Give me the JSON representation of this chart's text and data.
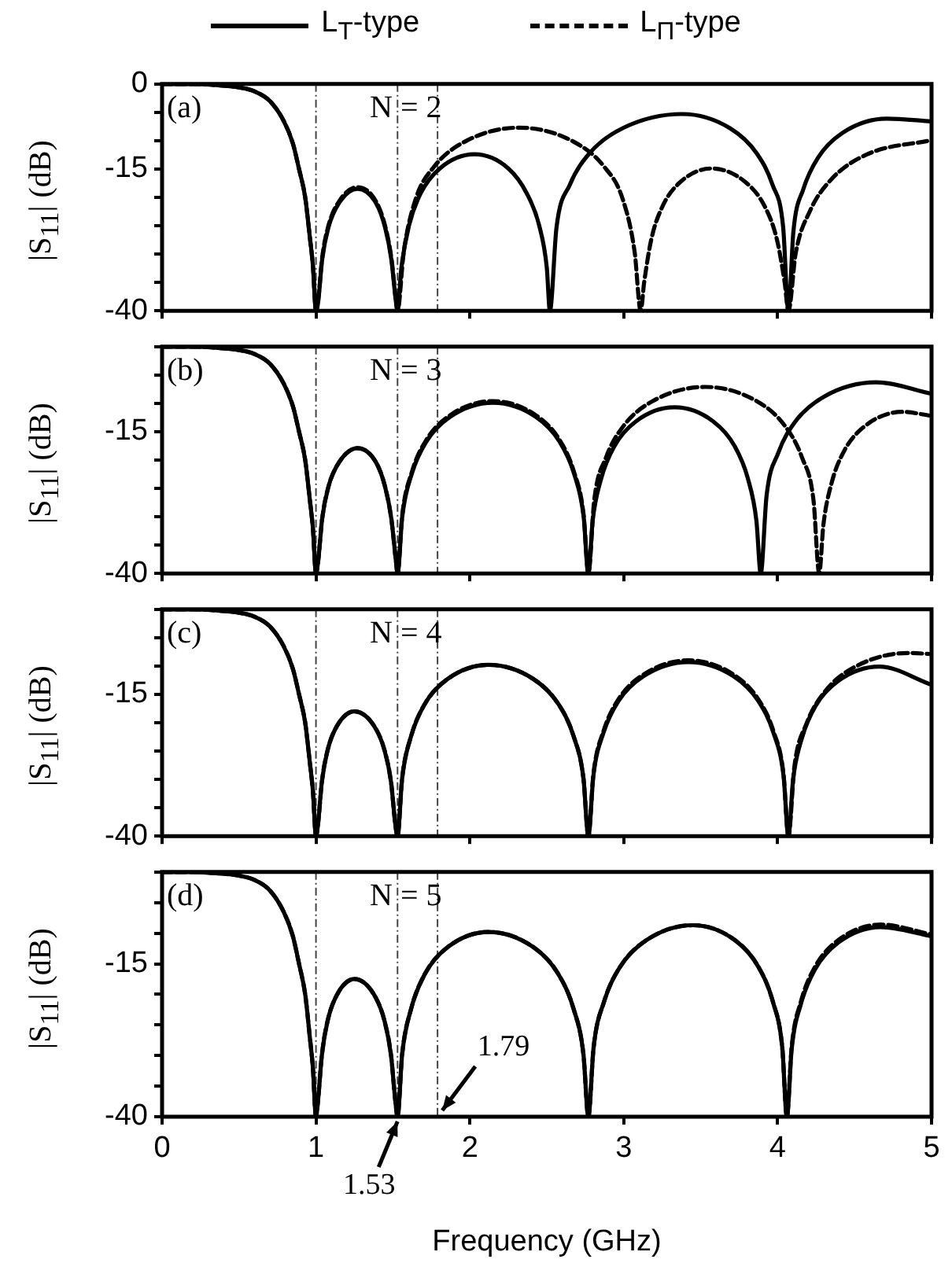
{
  "chart_data": [
    {
      "type": "line",
      "ylabel": "|S$_{11}$| (dB)",
      "legend": "top",
      "marker": "none",
      "tick_labels": "y",
      "annotations": [
        "(a)",
        "N = 2"
      ],
      "xlim": [
        0,
        5
      ],
      "xticks": [
        0,
        1,
        2,
        3,
        4,
        5
      ],
      "ylim": [
        -40,
        0
      ],
      "yticks": [
        0,
        {
          "value": -5,
          "label": null
        },
        {
          "value": -10,
          "label": null
        },
        -15,
        {
          "value": -20,
          "label": null
        },
        {
          "value": -25,
          "label": null
        },
        {
          "value": -30,
          "label": null
        },
        {
          "value": -35,
          "label": null
        },
        -40
      ],
      "ref_lines": [
        {
          "axis": "x",
          "value": 1.0,
          "color": "#444444",
          "line_style": "dashed"
        },
        {
          "axis": "x",
          "value": 1.53,
          "color": "#444444",
          "line_style": "dashed"
        },
        {
          "axis": "x",
          "value": 1.79,
          "color": "#444444",
          "line_style": "dashed"
        }
      ],
      "series": [
        {
          "name": "L$_{T}$-type",
          "color": "#000000",
          "line_style": "solid",
          "x": [
            0,
            0.2,
            0.35,
            0.5,
            0.6,
            0.7,
            0.79,
            0.85,
            0.89,
            0.93,
            0.96,
            0.98,
            1.0,
            1.014,
            1.04,
            1.08,
            1.15,
            1.27,
            1.39,
            1.45,
            1.49,
            1.52,
            1.53,
            1.555,
            1.605,
            1.68,
            1.805,
            2.03,
            2.25,
            2.37,
            2.45,
            2.5,
            2.52,
            2.563,
            2.649,
            2.778,
            2.993,
            3.38,
            3.69,
            3.863,
            3.967,
            4.036,
            4.07,
            4.102,
            4.166,
            4.262,
            4.422,
            4.71,
            5.0
          ],
          "values": [
            0,
            0,
            -0.2,
            -0.6,
            -1.3,
            -3,
            -6.5,
            -10.5,
            -15,
            -20,
            -27,
            -32,
            -40,
            -38.5,
            -31,
            -25.4,
            -21,
            -18.5,
            -21,
            -25.4,
            -31,
            -38.5,
            -40,
            -32.4,
            -24.9,
            -19.3,
            -14.9,
            -12.4,
            -14.9,
            -19.3,
            -24.9,
            -32.4,
            -40,
            -25.3,
            -17.8,
            -12.2,
            -7.8,
            -5.3,
            -7.8,
            -12.2,
            -17.8,
            -25.3,
            -40,
            -26.1,
            -18.6,
            -13,
            -8.6,
            -6.1,
            -6.6
          ]
        },
        {
          "name": "L$_{Π}$-type",
          "color": "#000000",
          "line_style": "dashed",
          "x": [
            0,
            0.2,
            0.35,
            0.5,
            0.6,
            0.7,
            0.79,
            0.85,
            0.89,
            0.93,
            0.96,
            0.98,
            1.0,
            1.014,
            1.04,
            1.08,
            1.15,
            1.27,
            1.39,
            1.45,
            1.49,
            1.52,
            1.53,
            1.57,
            1.649,
            1.767,
            1.965,
            2.32,
            2.676,
            2.873,
            2.992,
            3.071,
            3.11,
            3.133,
            3.179,
            3.248,
            3.363,
            3.57,
            3.795,
            3.92,
            3.995,
            4.045,
            4.07,
            4.117,
            4.21,
            4.349,
            4.582,
            5.0
          ],
          "values": [
            0,
            0,
            -0.2,
            -0.6,
            -1.3,
            -3,
            -6.5,
            -10.5,
            -15,
            -20,
            -27,
            -32,
            -40,
            -38.2,
            -30.7,
            -25.1,
            -20.7,
            -18.2,
            -20.7,
            -25.1,
            -30.7,
            -38.2,
            -40,
            -29.7,
            -20.2,
            -14.6,
            -10.2,
            -7.7,
            -10.2,
            -14.6,
            -20.2,
            -29.7,
            -40,
            -34.9,
            -27.4,
            -21.8,
            -17.4,
            -14.9,
            -17.4,
            -21.8,
            -27.4,
            -34.9,
            -40,
            -29.9,
            -22.4,
            -16.8,
            -12.4,
            -9.9
          ]
        }
      ]
    },
    {
      "type": "line",
      "ylabel": "|S$_{11}$| (dB)",
      "marker": "none",
      "tick_labels": "y",
      "annotations": [
        "(b)",
        "N = 3"
      ],
      "xlim": [
        0,
        5
      ],
      "xticks": [
        0,
        1,
        2,
        3,
        4,
        5
      ],
      "ylim": [
        -40,
        0
      ],
      "yticks": [
        {
          "value": 0,
          "label": null
        },
        {
          "value": -5,
          "label": null
        },
        {
          "value": -10,
          "label": null
        },
        -15,
        {
          "value": -20,
          "label": null
        },
        {
          "value": -25,
          "label": null
        },
        {
          "value": -30,
          "label": null
        },
        {
          "value": -35,
          "label": null
        },
        -40
      ],
      "ref_lines": [
        {
          "axis": "x",
          "value": 1.0,
          "color": "#444444",
          "line_style": "dashed"
        },
        {
          "axis": "x",
          "value": 1.53,
          "color": "#444444",
          "line_style": "dashed"
        },
        {
          "axis": "x",
          "value": 1.79,
          "color": "#444444",
          "line_style": "dashed"
        }
      ],
      "series": [
        {
          "color": "#000000",
          "line_style": "solid",
          "x": [
            0,
            0.2,
            0.35,
            0.5,
            0.6,
            0.7,
            0.79,
            0.85,
            0.89,
            0.93,
            0.96,
            0.98,
            1.0,
            1.014,
            1.04,
            1.08,
            1.15,
            1.27,
            1.39,
            1.45,
            1.49,
            1.52,
            1.53,
            1.561,
            1.623,
            1.716,
            1.871,
            2.15,
            2.429,
            2.584,
            2.677,
            2.739,
            2.77,
            2.798,
            2.854,
            2.938,
            3.078,
            3.33,
            3.582,
            3.722,
            3.806,
            3.862,
            3.89,
            3.928,
            4.003,
            4.115,
            4.303,
            4.64,
            5.0
          ],
          "values": [
            0,
            0,
            -0.2,
            -0.6,
            -1.3,
            -3,
            -6.5,
            -10.5,
            -15,
            -20,
            -27,
            -32,
            -40,
            -37.9,
            -30.4,
            -24.8,
            -20.4,
            -17.9,
            -20.4,
            -24.8,
            -30.4,
            -37.9,
            -40,
            -29.9,
            -22.4,
            -16.8,
            -12.4,
            -9.9,
            -12.4,
            -16.8,
            -22.4,
            -29.9,
            -40,
            -30.7,
            -23.2,
            -17.6,
            -13.2,
            -10.7,
            -13.2,
            -17.6,
            -23.2,
            -30.7,
            -40,
            -26.3,
            -18.8,
            -13.2,
            -8.8,
            -6.3,
            -8.3
          ]
        },
        {
          "color": "#000000",
          "line_style": "dashed",
          "x": [
            0,
            0.2,
            0.35,
            0.5,
            0.6,
            0.7,
            0.79,
            0.85,
            0.89,
            0.93,
            0.96,
            0.98,
            1.0,
            1.014,
            1.04,
            1.08,
            1.15,
            1.27,
            1.39,
            1.45,
            1.49,
            1.52,
            1.53,
            1.561,
            1.623,
            1.716,
            1.871,
            2.15,
            2.429,
            2.584,
            2.677,
            2.739,
            2.77,
            2.808,
            2.884,
            2.998,
            3.188,
            3.53,
            3.863,
            4.048,
            4.159,
            4.233,
            4.27,
            4.297,
            4.351,
            4.432,
            4.567,
            4.81,
            5.0
          ],
          "values": [
            0,
            0,
            -0.2,
            -0.6,
            -1.3,
            -3,
            -6.5,
            -10.5,
            -15,
            -20,
            -27,
            -32,
            -40,
            -37.9,
            -30.4,
            -24.8,
            -20.4,
            -17.9,
            -20.4,
            -24.8,
            -30.4,
            -37.9,
            -40,
            -29.6,
            -22.1,
            -16.5,
            -12.1,
            -9.6,
            -12.1,
            -16.5,
            -22.1,
            -29.6,
            -40,
            -27.1,
            -19.6,
            -14,
            -9.6,
            -7.1,
            -9.6,
            -14,
            -19.6,
            -27.1,
            -40,
            -31.5,
            -24,
            -18.4,
            -14,
            -11.5,
            -12.2
          ]
        }
      ]
    },
    {
      "type": "line",
      "ylabel": "|S$_{11}$| (dB)",
      "marker": "none",
      "tick_labels": "y",
      "annotations": [
        "(c)",
        "N = 4"
      ],
      "xlim": [
        0,
        5
      ],
      "xticks": [
        0,
        1,
        2,
        3,
        4,
        5
      ],
      "ylim": [
        -40,
        0
      ],
      "yticks": [
        {
          "value": 0,
          "label": null
        },
        {
          "value": -5,
          "label": null
        },
        {
          "value": -10,
          "label": null
        },
        -15,
        {
          "value": -20,
          "label": null
        },
        {
          "value": -25,
          "label": null
        },
        {
          "value": -30,
          "label": null
        },
        {
          "value": -35,
          "label": null
        },
        -40
      ],
      "ref_lines": [
        {
          "axis": "x",
          "value": 1.0,
          "color": "#444444",
          "line_style": "dashed"
        },
        {
          "axis": "x",
          "value": 1.53,
          "color": "#444444",
          "line_style": "dashed"
        },
        {
          "axis": "x",
          "value": 1.79,
          "color": "#444444",
          "line_style": "dashed"
        }
      ],
      "series": [
        {
          "color": "#000000",
          "line_style": "solid",
          "x": [
            0,
            0.2,
            0.35,
            0.5,
            0.6,
            0.7,
            0.79,
            0.85,
            0.89,
            0.93,
            0.96,
            0.98,
            1.0,
            1.013,
            1.038,
            1.075,
            1.138,
            1.25,
            1.376,
            1.446,
            1.488,
            1.516,
            1.53,
            1.56,
            1.619,
            1.707,
            1.855,
            2.12,
            2.413,
            2.575,
            2.673,
            2.738,
            2.77,
            2.803,
            2.868,
            2.965,
            3.128,
            3.42,
            3.713,
            3.875,
            3.973,
            4.038,
            4.07,
            4.1,
            4.159,
            4.247,
            4.395,
            4.66,
            5.0
          ],
          "values": [
            0,
            0,
            -0.2,
            -0.6,
            -1.3,
            -3,
            -6.5,
            -10.5,
            -15,
            -20,
            -27,
            -32,
            -40,
            -38,
            -30.5,
            -24.9,
            -20.5,
            -18,
            -20.5,
            -24.9,
            -30.5,
            -38,
            -40,
            -29.8,
            -22.3,
            -16.7,
            -12.3,
            -9.8,
            -12.3,
            -16.7,
            -22.3,
            -29.8,
            -40,
            -29.3,
            -21.8,
            -16.2,
            -11.8,
            -9.3,
            -11.8,
            -16.2,
            -21.8,
            -29.3,
            -40,
            -30.1,
            -22.6,
            -17,
            -12.6,
            -10.1,
            -13.3
          ]
        },
        {
          "color": "#000000",
          "line_style": "dashed",
          "x": [
            0,
            0.2,
            0.35,
            0.5,
            0.6,
            0.7,
            0.79,
            0.85,
            0.89,
            0.93,
            0.96,
            0.98,
            1.0,
            1.013,
            1.038,
            1.075,
            1.138,
            1.25,
            1.376,
            1.446,
            1.488,
            1.516,
            1.53,
            1.56,
            1.619,
            1.707,
            1.855,
            2.12,
            2.413,
            2.575,
            2.673,
            2.738,
            2.77,
            2.803,
            2.868,
            2.965,
            3.128,
            3.42,
            3.713,
            3.875,
            3.973,
            4.038,
            4.07,
            4.109,
            4.187,
            4.304,
            4.499,
            4.85,
            5.0
          ],
          "values": [
            0,
            0,
            -0.2,
            -0.6,
            -1.3,
            -3,
            -6.5,
            -10.5,
            -15,
            -20,
            -27,
            -32,
            -40,
            -38,
            -30.5,
            -24.9,
            -20.5,
            -18,
            -20.5,
            -24.9,
            -30.5,
            -38,
            -40,
            -29.8,
            -22.3,
            -16.7,
            -12.3,
            -9.8,
            -12.3,
            -16.7,
            -22.3,
            -29.8,
            -40,
            -29,
            -21.5,
            -15.9,
            -11.5,
            -9,
            -11.5,
            -15.9,
            -21.5,
            -29,
            -40,
            -27.7,
            -20.2,
            -14.6,
            -10.2,
            -7.7,
            -7.9
          ]
        }
      ]
    },
    {
      "type": "line",
      "ylabel": "|S$_{11}$| (dB)",
      "xlabel": "Frequency (GHz)",
      "marker": "none",
      "annotations": [
        "(d)",
        "N = 5",
        {
          "text": "1.53",
          "x": 1.53,
          "y": -40
        },
        {
          "text": "1.79",
          "x": 1.79,
          "y": -40
        }
      ],
      "xlim": [
        0,
        5
      ],
      "xticks": [
        0,
        1,
        2,
        3,
        4,
        5
      ],
      "ylim": [
        -40,
        0
      ],
      "yticks": [
        {
          "value": 0,
          "label": null
        },
        {
          "value": -5,
          "label": null
        },
        {
          "value": -10,
          "label": null
        },
        -15,
        {
          "value": -20,
          "label": null
        },
        {
          "value": -25,
          "label": null
        },
        {
          "value": -30,
          "label": null
        },
        {
          "value": -35,
          "label": null
        },
        -40
      ],
      "ref_lines": [
        {
          "axis": "x",
          "value": 1.0,
          "color": "#444444",
          "line_style": "dashed"
        },
        {
          "axis": "x",
          "value": 1.53,
          "color": "#444444",
          "line_style": "dashed"
        },
        {
          "axis": "x",
          "value": 1.79,
          "color": "#444444",
          "line_style": "dashed"
        }
      ],
      "series": [
        {
          "color": "#000000",
          "line_style": "solid",
          "x": [
            0,
            0.2,
            0.35,
            0.5,
            0.6,
            0.7,
            0.79,
            0.85,
            0.89,
            0.93,
            0.96,
            0.98,
            1.0,
            1.013,
            1.038,
            1.075,
            1.138,
            1.25,
            1.376,
            1.446,
            1.488,
            1.516,
            1.53,
            1.56,
            1.619,
            1.707,
            1.855,
            2.12,
            2.413,
            2.575,
            2.673,
            2.738,
            2.77,
            2.804,
            2.872,
            2.974,
            3.144,
            3.45,
            3.725,
            3.877,
            3.969,
            4.03,
            4.06,
            4.091,
            4.152,
            4.243,
            4.396,
            4.67,
            5.0
          ],
          "values": [
            0,
            0,
            -0.2,
            -0.6,
            -1.3,
            -3,
            -6.5,
            -10.5,
            -15,
            -20,
            -27,
            -32,
            -40,
            -37.5,
            -30,
            -24.4,
            -20,
            -17.5,
            -20,
            -24.4,
            -30,
            -37.5,
            -40,
            -29.8,
            -22.3,
            -16.7,
            -12.3,
            -9.8,
            -12.3,
            -16.7,
            -22.3,
            -29.8,
            -40,
            -28.7,
            -21.2,
            -15.6,
            -11.2,
            -8.7,
            -11.2,
            -15.6,
            -21.2,
            -28.7,
            -40,
            -29,
            -21.5,
            -15.9,
            -11.5,
            -9,
            -10.5
          ]
        },
        {
          "color": "#000000",
          "line_style": "dashed",
          "x": [
            0,
            0.2,
            0.35,
            0.5,
            0.6,
            0.7,
            0.79,
            0.85,
            0.89,
            0.93,
            0.96,
            0.98,
            1.0,
            1.013,
            1.038,
            1.075,
            1.138,
            1.25,
            1.376,
            1.446,
            1.488,
            1.516,
            1.53,
            1.56,
            1.619,
            1.707,
            1.855,
            2.12,
            2.413,
            2.575,
            2.673,
            2.738,
            2.77,
            2.804,
            2.872,
            2.974,
            3.144,
            3.45,
            3.725,
            3.877,
            3.969,
            4.03,
            4.06,
            4.091,
            4.152,
            4.243,
            4.396,
            4.67,
            5.0
          ],
          "values": [
            0,
            0,
            -0.2,
            -0.6,
            -1.3,
            -3,
            -6.5,
            -10.5,
            -15,
            -20,
            -27,
            -32,
            -40,
            -37.5,
            -30,
            -24.4,
            -20,
            -17.5,
            -20,
            -24.4,
            -30,
            -37.5,
            -40,
            -29.8,
            -22.3,
            -16.7,
            -12.3,
            -9.8,
            -12.3,
            -16.7,
            -22.3,
            -29.8,
            -40,
            -28.7,
            -21.2,
            -15.6,
            -11.2,
            -8.7,
            -11.2,
            -15.6,
            -21.2,
            -28.7,
            -40,
            -28.6,
            -21.1,
            -15.5,
            -11.1,
            -8.6,
            -10.2
          ]
        }
      ]
    }
  ]
}
